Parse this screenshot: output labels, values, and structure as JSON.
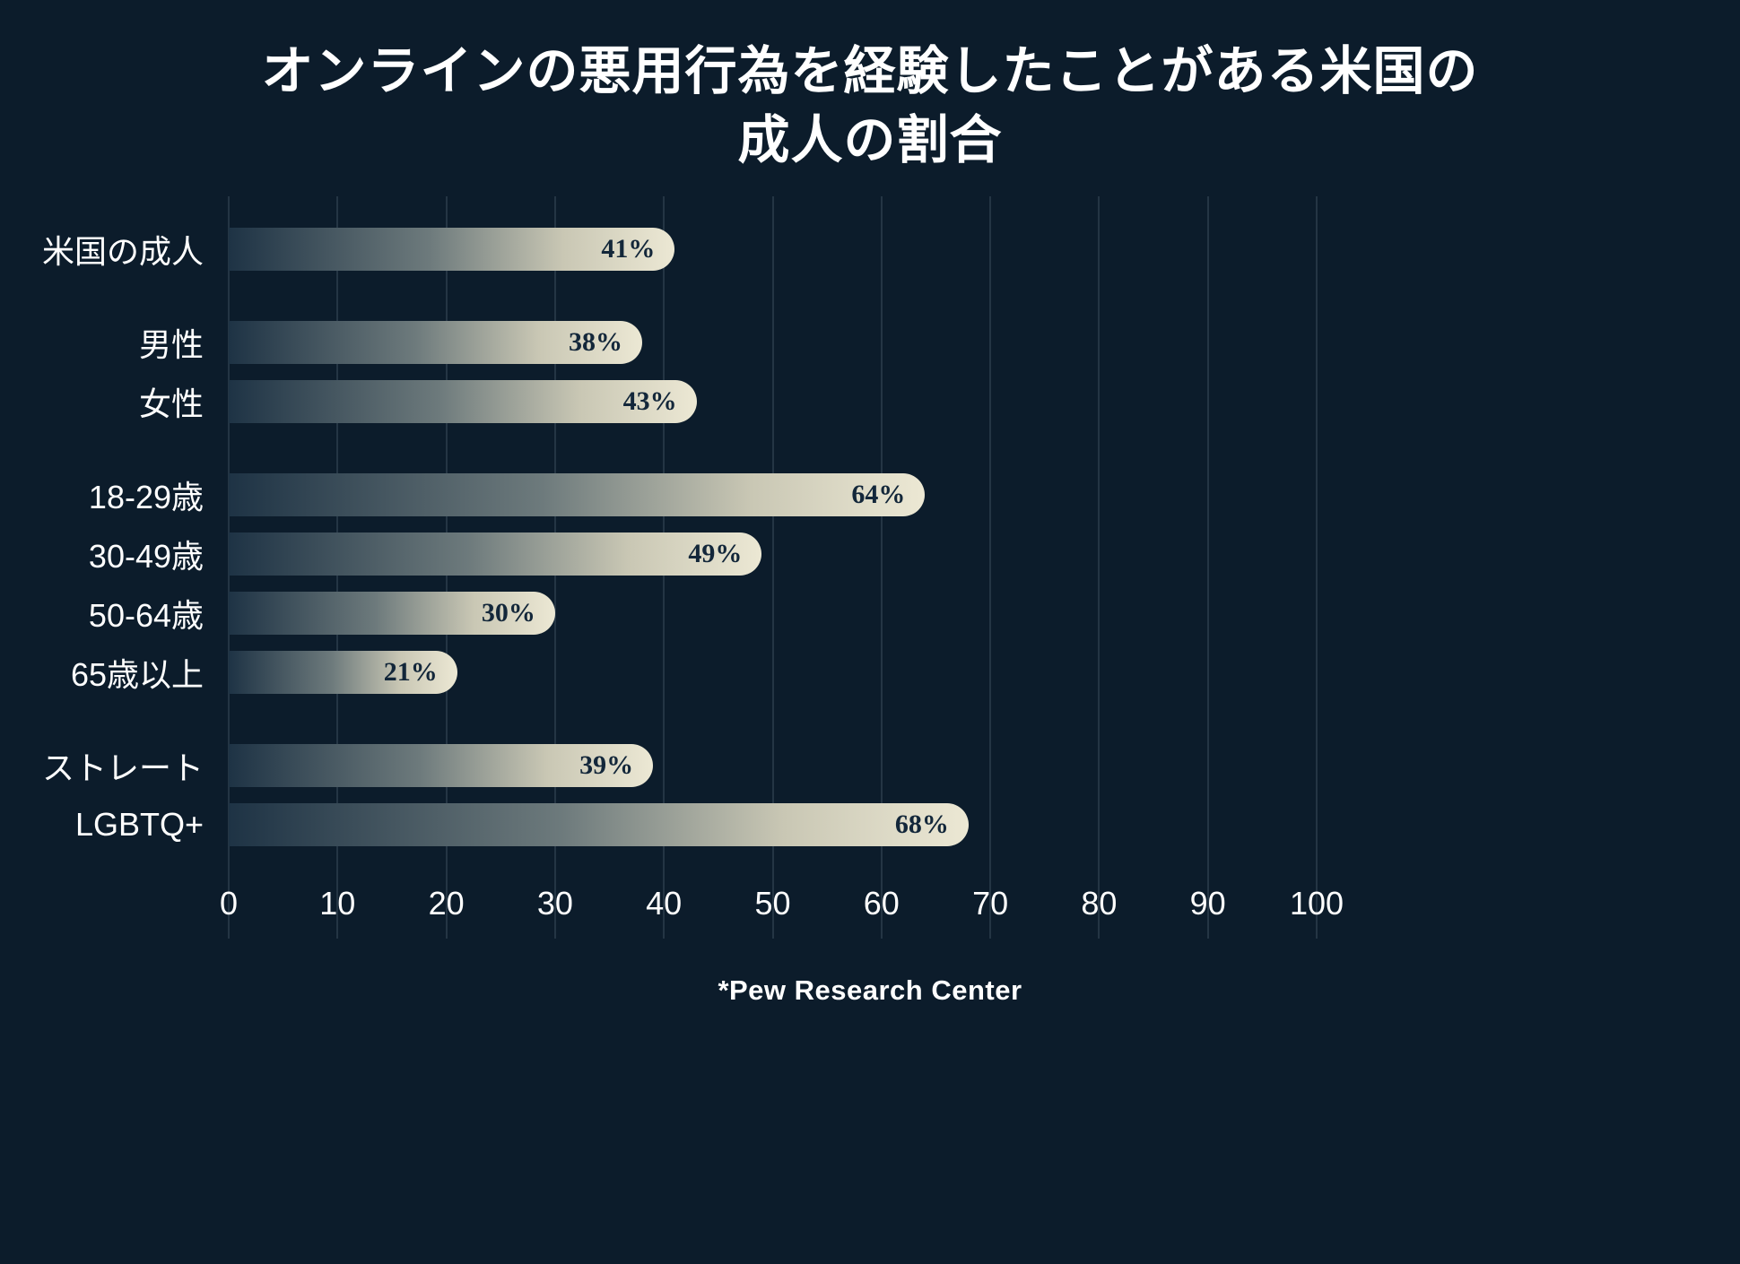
{
  "title": "オンラインの悪用行為を経験したことがある米国の成人の割合",
  "footer": "*Pew Research Center",
  "colors": {
    "background": "#0c1c2b",
    "bar_end": "#ece8d4",
    "bar_start": "#1e3345",
    "grid": "#5a6f80",
    "text": "#ffffff",
    "value_text": "#13273a"
  },
  "chart_data": {
    "type": "bar",
    "orientation": "horizontal",
    "title": "オンラインの悪用行為を経験したことがある米国の成人の割合",
    "categories": [
      "米国の成人",
      "男性",
      "女性",
      "18-29歳",
      "30-49歳",
      "50-64歳",
      "65歳以上",
      "ストレート",
      "LGBTQ+"
    ],
    "values": [
      41,
      38,
      43,
      64,
      49,
      30,
      21,
      39,
      68
    ],
    "value_suffix": "%",
    "groups": [
      [
        0
      ],
      [
        1,
        2
      ],
      [
        3,
        4,
        5,
        6
      ],
      [
        7,
        8
      ]
    ],
    "xlabel": "",
    "ylabel": "",
    "xlim": [
      0,
      100
    ],
    "xticks": [
      0,
      10,
      20,
      30,
      40,
      50,
      60,
      70,
      80,
      90,
      100
    ],
    "grid": true,
    "legend": false,
    "source": "*Pew Research Center"
  }
}
